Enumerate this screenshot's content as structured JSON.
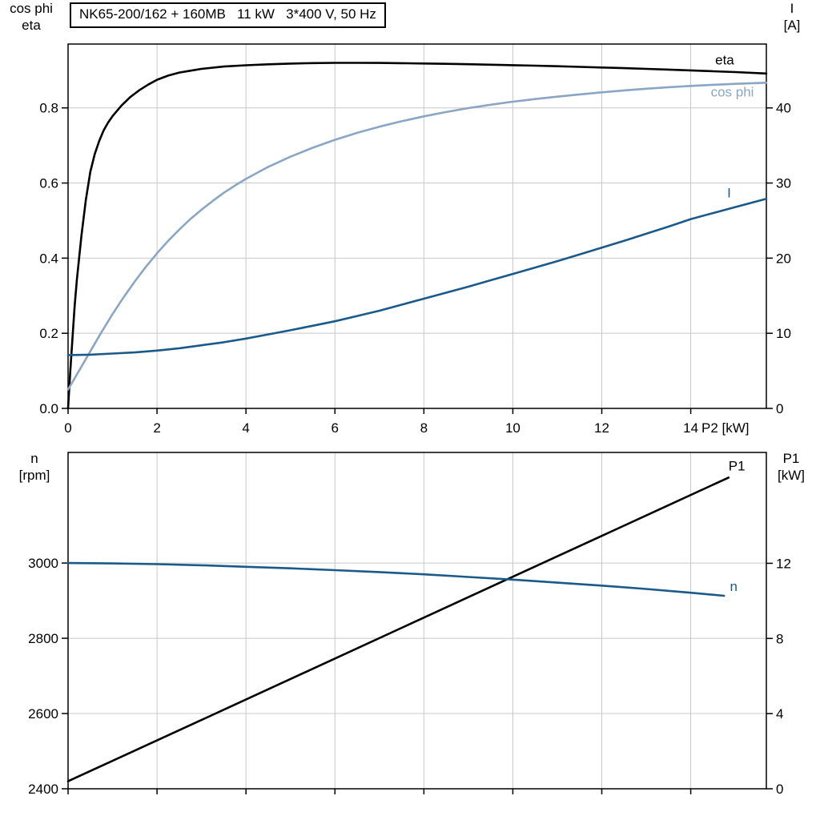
{
  "colors": {
    "background": "#ffffff",
    "grid": "#c8c8c8",
    "axis": "#000000",
    "black_curve": "#000000",
    "light_blue": "#8ba6c5",
    "dark_blue": "#1a5a8a"
  },
  "chart_data": [
    {
      "type": "line",
      "title": "NK65-200/162 + 160MB   11 kW   3*400 V, 50 Hz",
      "legend": "curve-end labels, no legend box",
      "grid": true,
      "axes": {
        "x": {
          "label": "P2 [kW]",
          "min": 0,
          "max": 15.7,
          "show_labels": true,
          "ticks": [
            [
              0,
              "0"
            ],
            [
              2,
              "2"
            ],
            [
              4,
              "4"
            ],
            [
              6,
              "6"
            ],
            [
              8,
              "8"
            ],
            [
              10,
              "10"
            ],
            [
              12,
              "12"
            ],
            [
              14,
              "14"
            ]
          ]
        },
        "left": {
          "title_lines": [
            "cos phi",
            "eta"
          ],
          "min": 0,
          "max": 0.97,
          "ticks": [
            [
              0,
              "0.0"
            ],
            [
              0.2,
              "0.2"
            ],
            [
              0.4,
              "0.4"
            ],
            [
              0.6,
              "0.6"
            ],
            [
              0.8,
              "0.8"
            ]
          ]
        },
        "right": {
          "title_lines": [
            "I",
            "[A]"
          ],
          "min": 0,
          "max": 48.5,
          "ticks": [
            [
              0,
              "0"
            ],
            [
              10,
              "10"
            ],
            [
              20,
              "20"
            ],
            [
              30,
              "30"
            ],
            [
              40,
              "40"
            ]
          ]
        }
      },
      "series": [
        {
          "name": "eta",
          "label": "eta",
          "axis": "left",
          "color_key": "black_curve",
          "label_at": [
            14.55,
            0.916
          ],
          "points": [
            [
              0,
              0
            ],
            [
              0.05,
              0.1
            ],
            [
              0.1,
              0.19
            ],
            [
              0.15,
              0.275
            ],
            [
              0.2,
              0.345
            ],
            [
              0.3,
              0.46
            ],
            [
              0.4,
              0.555
            ],
            [
              0.5,
              0.63
            ],
            [
              0.6,
              0.677
            ],
            [
              0.7,
              0.712
            ],
            [
              0.8,
              0.74
            ],
            [
              0.9,
              0.761
            ],
            [
              1,
              0.778
            ],
            [
              1.2,
              0.806
            ],
            [
              1.4,
              0.829
            ],
            [
              1.6,
              0.847
            ],
            [
              1.8,
              0.862
            ],
            [
              2,
              0.875
            ],
            [
              2.25,
              0.886
            ],
            [
              2.5,
              0.894
            ],
            [
              2.75,
              0.899
            ],
            [
              3,
              0.904
            ],
            [
              3.5,
              0.91
            ],
            [
              4,
              0.9135
            ],
            [
              4.5,
              0.916
            ],
            [
              5,
              0.918
            ],
            [
              5.5,
              0.9193
            ],
            [
              6,
              0.92
            ],
            [
              6.5,
              0.92
            ],
            [
              7,
              0.9197
            ],
            [
              7.5,
              0.919
            ],
            [
              8,
              0.9183
            ],
            [
              8.5,
              0.9174
            ],
            [
              9,
              0.9163
            ],
            [
              9.5,
              0.9151
            ],
            [
              10,
              0.9138
            ],
            [
              10.5,
              0.9124
            ],
            [
              11,
              0.9109
            ],
            [
              11.5,
              0.9093
            ],
            [
              12,
              0.9076
            ],
            [
              12.5,
              0.9058
            ],
            [
              13,
              0.9039
            ],
            [
              13.5,
              0.9019
            ],
            [
              14,
              0.8998
            ],
            [
              14.5,
              0.8976
            ],
            [
              15,
              0.8953
            ],
            [
              15.7,
              0.8915
            ]
          ]
        },
        {
          "name": "cos-phi",
          "label": "cos phi",
          "axis": "left",
          "color_key": "light_blue",
          "label_at": [
            14.45,
            0.83
          ],
          "points": [
            [
              0,
              0.05
            ],
            [
              0.25,
              0.101
            ],
            [
              0.5,
              0.152
            ],
            [
              0.75,
              0.203
            ],
            [
              1,
              0.251
            ],
            [
              1.25,
              0.296
            ],
            [
              1.5,
              0.338
            ],
            [
              1.75,
              0.377
            ],
            [
              2,
              0.413
            ],
            [
              2.25,
              0.446
            ],
            [
              2.5,
              0.476
            ],
            [
              2.75,
              0.504
            ],
            [
              3,
              0.529
            ],
            [
              3.25,
              0.552
            ],
            [
              3.5,
              0.574
            ],
            [
              3.75,
              0.593
            ],
            [
              4,
              0.611
            ],
            [
              4.5,
              0.643
            ],
            [
              5,
              0.67
            ],
            [
              5.5,
              0.694
            ],
            [
              6,
              0.715
            ],
            [
              6.5,
              0.7335
            ],
            [
              7,
              0.75
            ],
            [
              7.5,
              0.7645
            ],
            [
              8,
              0.7775
            ],
            [
              8.5,
              0.789
            ],
            [
              9,
              0.7995
            ],
            [
              9.5,
              0.8085
            ],
            [
              10,
              0.8165
            ],
            [
              10.5,
              0.8235
            ],
            [
              11,
              0.83
            ],
            [
              11.5,
              0.836
            ],
            [
              12,
              0.8415
            ],
            [
              12.5,
              0.8465
            ],
            [
              13,
              0.851
            ],
            [
              13.5,
              0.855
            ],
            [
              14,
              0.8585
            ],
            [
              14.5,
              0.8615
            ],
            [
              15,
              0.864
            ],
            [
              15.7,
              0.867
            ]
          ]
        },
        {
          "name": "I",
          "label": "I",
          "axis": "right",
          "color_key": "dark_blue",
          "label_at": [
            14.82,
            28.1
          ],
          "points": [
            [
              0,
              7.1
            ],
            [
              0.5,
              7.15
            ],
            [
              1,
              7.3
            ],
            [
              1.5,
              7.45
            ],
            [
              2,
              7.7
            ],
            [
              2.5,
              8.0
            ],
            [
              3,
              8.4
            ],
            [
              3.5,
              8.8
            ],
            [
              4,
              9.3
            ],
            [
              4.5,
              9.85
            ],
            [
              5,
              10.4
            ],
            [
              5.5,
              11.0
            ],
            [
              6,
              11.6
            ],
            [
              6.5,
              12.3
            ],
            [
              7,
              13.0
            ],
            [
              7.5,
              13.8
            ],
            [
              8,
              14.6
            ],
            [
              8.5,
              15.4
            ],
            [
              9,
              16.2
            ],
            [
              9.5,
              17.05
            ],
            [
              10,
              17.9
            ],
            [
              10.5,
              18.75
            ],
            [
              11,
              19.6
            ],
            [
              11.5,
              20.5
            ],
            [
              12,
              21.4
            ],
            [
              12.5,
              22.3
            ],
            [
              13,
              23.25
            ],
            [
              13.5,
              24.2
            ],
            [
              14,
              25.2
            ],
            [
              14.5,
              26.0
            ],
            [
              15,
              26.8
            ],
            [
              15.7,
              27.9
            ]
          ]
        }
      ]
    },
    {
      "type": "line",
      "title": "",
      "grid": true,
      "axes": {
        "x": {
          "label": "",
          "min": 0,
          "max": 15.7,
          "show_labels": false,
          "ticks": [
            [
              0,
              ""
            ],
            [
              2,
              ""
            ],
            [
              4,
              ""
            ],
            [
              6,
              ""
            ],
            [
              8,
              ""
            ],
            [
              10,
              ""
            ],
            [
              12,
              ""
            ],
            [
              14,
              ""
            ]
          ]
        },
        "left": {
          "title_lines": [
            "n",
            "[rpm]"
          ],
          "min": 2400,
          "max": 3294,
          "ticks": [
            [
              2400,
              "2400"
            ],
            [
              2600,
              "2600"
            ],
            [
              2800,
              "2800"
            ],
            [
              3000,
              "3000"
            ]
          ]
        },
        "right": {
          "title_lines": [
            "P1",
            "[kW]"
          ],
          "min": 0,
          "max": 17.9,
          "ticks": [
            [
              0,
              "0"
            ],
            [
              4,
              "4"
            ],
            [
              8,
              "8"
            ],
            [
              12,
              "12"
            ]
          ]
        }
      },
      "series": [
        {
          "name": "P1",
          "label": "P1",
          "axis": "right",
          "color_key": "black_curve",
          "label_at": [
            14.85,
            16.95
          ],
          "points": [
            [
              0,
              0.4
            ],
            [
              3,
              3.66
            ],
            [
              6,
              6.93
            ],
            [
              9,
              10.2
            ],
            [
              12,
              13.46
            ],
            [
              14.85,
              16.56
            ]
          ]
        },
        {
          "name": "n",
          "label": "n",
          "axis": "left",
          "color_key": "dark_blue",
          "label_at": [
            14.88,
            2926
          ],
          "points": [
            [
              0,
              3000
            ],
            [
              1,
              2999
            ],
            [
              2,
              2997
            ],
            [
              3,
              2994
            ],
            [
              4,
              2990
            ],
            [
              5,
              2986
            ],
            [
              6,
              2981
            ],
            [
              7,
              2976
            ],
            [
              8,
              2970
            ],
            [
              9,
              2963
            ],
            [
              10,
              2956
            ],
            [
              11,
              2948
            ],
            [
              12,
              2940
            ],
            [
              13,
              2931
            ],
            [
              14,
              2921
            ],
            [
              14.75,
              2913
            ]
          ]
        }
      ]
    }
  ]
}
